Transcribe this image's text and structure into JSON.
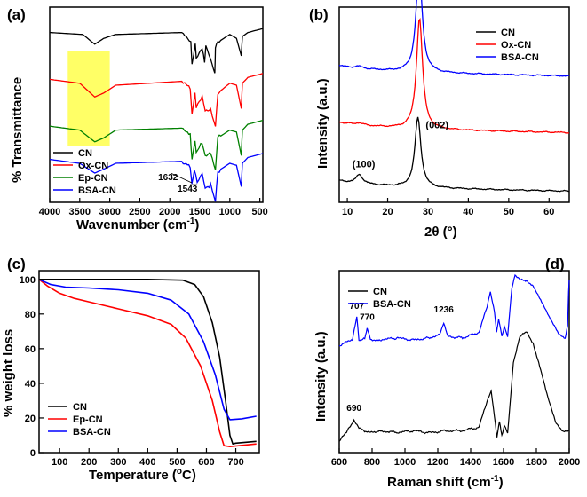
{
  "chart_data": [
    {
      "panel": "(a)",
      "type": "line",
      "xlabel": "Wavenumber (cm",
      "xlabel_sup": "-1",
      "xlabel_close": ")",
      "ylabel": "% Transmittance",
      "xlim": [
        4000,
        450
      ],
      "xticks": [
        "4000",
        "3500",
        "3000",
        "2500",
        "2000",
        "1500",
        "1000",
        "500"
      ],
      "xtick_values": [
        4000,
        3500,
        3000,
        2500,
        2000,
        1500,
        1000,
        500
      ],
      "highlight_region": [
        3700,
        3000
      ],
      "highlight_color": "#ffff66",
      "series": [
        {
          "name": "CN",
          "color": "#000000",
          "offset": 0.87,
          "points": [
            [
              4000,
              0.0
            ],
            [
              3450,
              -0.01
            ],
            [
              3250,
              -0.06
            ],
            [
              3100,
              -0.03
            ],
            [
              2900,
              -0.01
            ],
            [
              1800,
              0.0
            ],
            [
              1650,
              -0.04
            ],
            [
              1630,
              -0.16
            ],
            [
              1575,
              -0.05
            ],
            [
              1560,
              -0.13
            ],
            [
              1460,
              -0.08
            ],
            [
              1420,
              -0.15
            ],
            [
              1400,
              -0.07
            ],
            [
              1320,
              -0.14
            ],
            [
              1250,
              -0.22
            ],
            [
              1240,
              -0.08
            ],
            [
              1200,
              -0.05
            ],
            [
              1000,
              -0.01
            ],
            [
              890,
              -0.03
            ],
            [
              810,
              -0.12
            ],
            [
              790,
              -0.02
            ],
            [
              700,
              0.0
            ],
            [
              450,
              0.02
            ]
          ]
        },
        {
          "name": "Ox-CN",
          "color": "#ff0000",
          "offset": 0.63,
          "points": [
            [
              4000,
              0.0
            ],
            [
              3500,
              -0.02
            ],
            [
              3250,
              -0.09
            ],
            [
              3100,
              -0.07
            ],
            [
              2900,
              -0.03
            ],
            [
              1800,
              -0.01
            ],
            [
              1660,
              -0.05
            ],
            [
              1630,
              -0.18
            ],
            [
              1580,
              -0.08
            ],
            [
              1560,
              -0.15
            ],
            [
              1460,
              -0.09
            ],
            [
              1410,
              -0.16
            ],
            [
              1320,
              -0.15
            ],
            [
              1240,
              -0.24
            ],
            [
              1200,
              -0.07
            ],
            [
              1000,
              -0.02
            ],
            [
              890,
              -0.03
            ],
            [
              810,
              -0.15
            ],
            [
              790,
              -0.02
            ],
            [
              700,
              0.01
            ],
            [
              450,
              0.03
            ]
          ]
        },
        {
          "name": "Ep-CN",
          "color": "#008000",
          "offset": 0.39,
          "points": [
            [
              4000,
              0.0
            ],
            [
              3500,
              -0.02
            ],
            [
              3250,
              -0.08
            ],
            [
              3100,
              -0.06
            ],
            [
              2900,
              -0.02
            ],
            [
              1800,
              -0.01
            ],
            [
              1660,
              -0.04
            ],
            [
              1630,
              -0.17
            ],
            [
              1580,
              -0.07
            ],
            [
              1560,
              -0.13
            ],
            [
              1460,
              -0.08
            ],
            [
              1410,
              -0.15
            ],
            [
              1320,
              -0.14
            ],
            [
              1240,
              -0.23
            ],
            [
              1200,
              -0.06
            ],
            [
              1000,
              -0.02
            ],
            [
              890,
              -0.03
            ],
            [
              810,
              -0.15
            ],
            [
              790,
              -0.02
            ],
            [
              700,
              0.01
            ],
            [
              450,
              0.03
            ]
          ]
        },
        {
          "name": "BSA-CN",
          "color": "#0000ff",
          "offset": 0.22,
          "points": [
            [
              4000,
              0.0
            ],
            [
              3500,
              -0.02
            ],
            [
              3250,
              -0.07
            ],
            [
              3100,
              -0.05
            ],
            [
              2900,
              -0.02
            ],
            [
              1800,
              -0.01
            ],
            [
              1660,
              -0.04
            ],
            [
              1632,
              -0.13
            ],
            [
              1590,
              -0.06
            ],
            [
              1543,
              -0.12
            ],
            [
              1460,
              -0.08
            ],
            [
              1410,
              -0.15
            ],
            [
              1320,
              -0.13
            ],
            [
              1240,
              -0.21
            ],
            [
              1200,
              -0.06
            ],
            [
              1000,
              -0.02
            ],
            [
              890,
              -0.03
            ],
            [
              810,
              -0.14
            ],
            [
              790,
              -0.02
            ],
            [
              700,
              0.01
            ],
            [
              450,
              0.03
            ]
          ]
        }
      ],
      "annotations": [
        "1632",
        "1543"
      ],
      "annotation_points": [
        [
          1632,
          0.1
        ],
        [
          1543,
          0.09
        ]
      ],
      "legend_position": "bottom-left"
    },
    {
      "panel": "(b)",
      "type": "line",
      "xlabel": "2θ (°)",
      "ylabel": "Intensity (a.u.)",
      "xlim": [
        8,
        65
      ],
      "xticks": [
        "10",
        "20",
        "30",
        "40",
        "50",
        "60"
      ],
      "xtick_values": [
        10,
        20,
        30,
        40,
        50,
        60
      ],
      "series": [
        {
          "name": "CN",
          "color": "#000000",
          "baseline": 0.08,
          "peaks": [
            [
              13.0,
              0.045,
              1.0
            ],
            [
              27.5,
              0.36,
              0.9
            ]
          ]
        },
        {
          "name": "Ox-CN",
          "color": "#ff0000",
          "baseline": 0.38,
          "peaks": [
            [
              13.0,
              0.01,
              1.0
            ],
            [
              27.9,
              0.57,
              0.9
            ]
          ]
        },
        {
          "name": "BSA-CN",
          "color": "#0000ff",
          "baseline": 0.67,
          "peaks": [
            [
              13.0,
              0.01,
              1.0
            ],
            [
              27.8,
              0.54,
              0.9
            ]
          ]
        }
      ],
      "annotations": [
        "(100)",
        "(002)"
      ],
      "annotation_points": [
        [
          13.0,
          0.18
        ],
        [
          29.0,
          0.38
        ]
      ],
      "legend_position": "top-right"
    },
    {
      "panel": "(c)",
      "type": "line",
      "xlabel": "Temperature (",
      "xlabel_sup": "o",
      "xlabel_close": "C)",
      "ylabel": "% weight loss",
      "xlim": [
        30,
        780
      ],
      "ylim": [
        0,
        105
      ],
      "xticks": [
        "100",
        "200",
        "300",
        "400",
        "500",
        "600",
        "700"
      ],
      "xtick_values": [
        100,
        200,
        300,
        400,
        500,
        600,
        700
      ],
      "yticks": [
        "0",
        "20",
        "40",
        "60",
        "80",
        "100"
      ],
      "ytick_values": [
        0,
        20,
        40,
        60,
        80,
        100
      ],
      "series": [
        {
          "name": "CN",
          "color": "#000000",
          "points": [
            [
              30,
              100
            ],
            [
              200,
              100
            ],
            [
              400,
              100
            ],
            [
              520,
              99.5
            ],
            [
              560,
              97
            ],
            [
              590,
              90
            ],
            [
              620,
              75
            ],
            [
              645,
              55
            ],
            [
              665,
              30
            ],
            [
              680,
              10
            ],
            [
              690,
              5
            ],
            [
              700,
              5.5
            ],
            [
              770,
              6.5
            ]
          ]
        },
        {
          "name": "Ep-CN",
          "color": "#ff0000",
          "points": [
            [
              30,
              100
            ],
            [
              60,
              96
            ],
            [
              100,
              92
            ],
            [
              150,
              89
            ],
            [
              200,
              87
            ],
            [
              300,
              83
            ],
            [
              400,
              79
            ],
            [
              480,
              74
            ],
            [
              530,
              66
            ],
            [
              580,
              50
            ],
            [
              620,
              30
            ],
            [
              645,
              12
            ],
            [
              660,
              4
            ],
            [
              680,
              3.5
            ],
            [
              770,
              5
            ]
          ]
        },
        {
          "name": "BSA-CN",
          "color": "#0000ff",
          "points": [
            [
              30,
              100
            ],
            [
              70,
              97
            ],
            [
              120,
              95.5
            ],
            [
              200,
              95
            ],
            [
              300,
              94
            ],
            [
              400,
              92
            ],
            [
              480,
              88
            ],
            [
              540,
              80
            ],
            [
              590,
              64
            ],
            [
              630,
              45
            ],
            [
              660,
              25
            ],
            [
              680,
              19
            ],
            [
              720,
              19.5
            ],
            [
              770,
              21
            ]
          ]
        }
      ],
      "legend_position": "bottom-left"
    },
    {
      "panel": "(d)",
      "type": "line",
      "xlabel": "Raman shift (cm",
      "xlabel_sup": "-1",
      "xlabel_close": ")",
      "ylabel": "Intensity (a.u.)",
      "xlim": [
        600,
        2000
      ],
      "xticks": [
        "600",
        "800",
        "1000",
        "1200",
        "1400",
        "1600",
        "1800",
        "2000"
      ],
      "xtick_values": [
        600,
        800,
        1000,
        1200,
        1400,
        1600,
        1800,
        2000
      ],
      "series": [
        {
          "name": "CN",
          "color": "#000000",
          "points": [
            [
              600,
              0.06
            ],
            [
              650,
              0.12
            ],
            [
              690,
              0.18
            ],
            [
              720,
              0.14
            ],
            [
              760,
              0.11
            ],
            [
              850,
              0.12
            ],
            [
              950,
              0.11
            ],
            [
              1050,
              0.12
            ],
            [
              1150,
              0.11
            ],
            [
              1250,
              0.12
            ],
            [
              1350,
              0.12
            ],
            [
              1450,
              0.14
            ],
            [
              1500,
              0.28
            ],
            [
              1525,
              0.34
            ],
            [
              1545,
              0.2
            ],
            [
              1560,
              0.08
            ],
            [
              1575,
              0.17
            ],
            [
              1590,
              0.1
            ],
            [
              1605,
              0.15
            ],
            [
              1625,
              0.1
            ],
            [
              1660,
              0.5
            ],
            [
              1700,
              0.64
            ],
            [
              1740,
              0.66
            ],
            [
              1780,
              0.6
            ],
            [
              1820,
              0.48
            ],
            [
              1870,
              0.3
            ],
            [
              1920,
              0.16
            ],
            [
              1960,
              0.12
            ],
            [
              2000,
              0.12
            ]
          ]
        },
        {
          "name": "BSA-CN",
          "color": "#0000ff",
          "points": [
            [
              600,
              0.59
            ],
            [
              680,
              0.62
            ],
            [
              707,
              0.74
            ],
            [
              720,
              0.62
            ],
            [
              755,
              0.63
            ],
            [
              770,
              0.68
            ],
            [
              790,
              0.62
            ],
            [
              850,
              0.62
            ],
            [
              950,
              0.63
            ],
            [
              1050,
              0.62
            ],
            [
              1150,
              0.63
            ],
            [
              1210,
              0.65
            ],
            [
              1236,
              0.71
            ],
            [
              1260,
              0.64
            ],
            [
              1350,
              0.63
            ],
            [
              1450,
              0.66
            ],
            [
              1500,
              0.8
            ],
            [
              1520,
              0.88
            ],
            [
              1545,
              0.78
            ],
            [
              1558,
              0.66
            ],
            [
              1570,
              0.73
            ],
            [
              1590,
              0.64
            ],
            [
              1605,
              0.7
            ],
            [
              1625,
              0.63
            ],
            [
              1650,
              0.9
            ],
            [
              1670,
              0.98
            ],
            [
              1700,
              0.95
            ],
            [
              1740,
              0.94
            ],
            [
              1780,
              0.92
            ],
            [
              1820,
              0.85
            ],
            [
              1880,
              0.74
            ],
            [
              1940,
              0.65
            ],
            [
              1975,
              0.63
            ],
            [
              1990,
              0.7
            ],
            [
              1996,
              0.88
            ],
            [
              2000,
              0.95
            ]
          ]
        }
      ],
      "annotations": [
        "707",
        "770",
        "1236",
        "690"
      ],
      "annotation_points": [
        [
          707,
          0.79
        ],
        [
          770,
          0.73
        ],
        [
          1236,
          0.77
        ],
        [
          690,
          0.23
        ]
      ],
      "legend_position": "top-left"
    }
  ]
}
